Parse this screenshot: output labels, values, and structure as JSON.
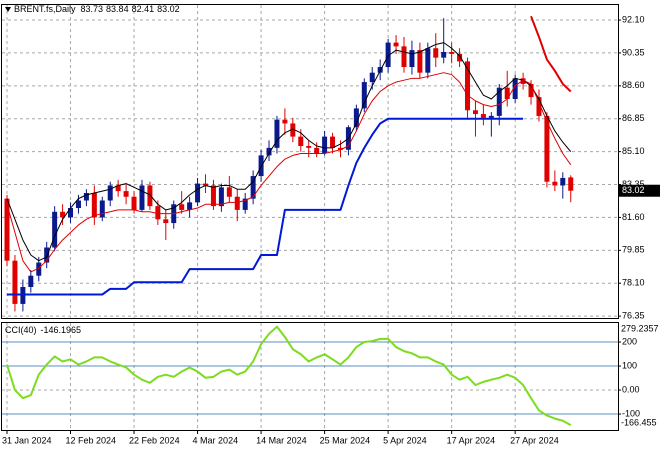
{
  "chart_data": [
    {
      "type": "candlestick",
      "title": "BRENT.fs,Daily",
      "categories": [
        "31 Jan 2024",
        null,
        null,
        null,
        null,
        null,
        null,
        null,
        "12 Feb 2024",
        null,
        null,
        null,
        null,
        null,
        null,
        null,
        "22 Feb 2024",
        null,
        null,
        null,
        null,
        null,
        null,
        null,
        "4 Mar 2024",
        null,
        null,
        null,
        null,
        null,
        null,
        null,
        "14 Mar 2024",
        null,
        null,
        null,
        null,
        null,
        null,
        null,
        "25 Mar 2024",
        null,
        null,
        null,
        null,
        null,
        null,
        null,
        "5 Apr 2024",
        null,
        null,
        null,
        null,
        null,
        null,
        null,
        "17 Apr 2024",
        null,
        null,
        null,
        null,
        null,
        null,
        null,
        "27 Apr 2024",
        null,
        null,
        null,
        null,
        null,
        null,
        null
      ],
      "open": [
        82.6,
        79.3,
        77.0,
        77.9,
        78.5,
        79.2,
        80.0,
        81.9,
        81.6,
        82.1,
        82.5,
        82.9,
        81.6,
        82.5,
        83.3,
        83.0,
        82.7,
        82.0,
        83.3,
        82.2,
        81.5,
        81.3,
        82.3,
        82.0,
        82.4,
        83.4,
        83.3,
        82.2,
        83.2,
        82.7,
        82.0,
        82.6,
        83.8,
        84.9,
        85.3,
        86.8,
        86.6,
        85.9,
        85.4,
        85.3,
        85.0,
        85.9,
        85.3,
        85.2,
        86.4,
        87.4,
        88.8,
        89.3,
        89.6,
        90.9,
        90.7,
        89.6,
        90.5,
        89.3,
        90.6,
        90.1,
        90.4,
        90.3,
        89.9,
        87.3,
        87.1,
        86.9,
        87.0,
        88.5,
        87.9,
        89.0,
        88.7,
        88.0,
        87.0,
        83.5,
        83.3,
        83.73
      ],
      "high": [
        82.8,
        79.6,
        78.3,
        78.8,
        79.5,
        80.3,
        82.2,
        82.3,
        82.4,
        82.8,
        83.1,
        83.3,
        82.7,
        83.5,
        83.6,
        83.4,
        83.0,
        83.6,
        83.5,
        82.5,
        82.0,
        82.5,
        83.0,
        82.7,
        83.7,
        83.9,
        83.6,
        83.4,
        83.8,
        83.1,
        82.9,
        84.1,
        85.2,
        85.7,
        87.0,
        87.4,
        86.9,
        86.3,
        85.7,
        85.6,
        86.2,
        86.1,
        85.7,
        86.5,
        87.6,
        89.0,
        89.6,
        90.0,
        91.1,
        91.3,
        91.2,
        91.0,
        90.9,
        90.9,
        91.4,
        92.2,
        90.9,
        90.6,
        90.1,
        87.8,
        87.6,
        87.2,
        88.7,
        89.4,
        89.2,
        89.3,
        88.9,
        88.4,
        87.2,
        84.1,
        84.0,
        83.84
      ],
      "low": [
        79.0,
        76.6,
        76.6,
        77.6,
        78.2,
        78.9,
        79.8,
        81.2,
        81.3,
        81.8,
        82.2,
        81.2,
        81.4,
        82.2,
        82.7,
        82.3,
        81.8,
        81.9,
        82.0,
        81.2,
        80.4,
        81.0,
        81.8,
        81.6,
        82.2,
        82.9,
        82.0,
        81.9,
        82.4,
        81.4,
        81.8,
        82.3,
        83.5,
        84.6,
        85.0,
        86.0,
        85.6,
        85.1,
        84.8,
        84.8,
        84.9,
        85.0,
        84.8,
        84.9,
        86.2,
        87.2,
        88.4,
        88.9,
        89.3,
        90.3,
        89.3,
        89.2,
        89.0,
        89.0,
        89.6,
        89.8,
        89.8,
        89.6,
        86.8,
        85.9,
        86.5,
        85.9,
        86.5,
        87.5,
        87.7,
        88.4,
        87.6,
        86.7,
        83.2,
        83.0,
        82.6,
        82.41
      ],
      "close": [
        79.3,
        77.0,
        77.9,
        78.5,
        79.2,
        80.0,
        81.9,
        81.6,
        82.1,
        82.5,
        82.9,
        81.6,
        82.5,
        83.3,
        83.0,
        82.7,
        82.0,
        83.3,
        82.2,
        81.5,
        81.3,
        82.3,
        82.0,
        82.4,
        83.4,
        83.3,
        82.2,
        83.2,
        82.7,
        82.0,
        82.6,
        83.8,
        84.9,
        85.3,
        86.8,
        86.6,
        85.9,
        85.4,
        85.3,
        85.0,
        85.9,
        85.3,
        85.2,
        86.4,
        87.4,
        88.8,
        89.3,
        89.6,
        90.9,
        90.7,
        89.6,
        90.5,
        89.3,
        90.6,
        90.1,
        90.4,
        90.3,
        89.9,
        87.3,
        87.1,
        86.9,
        87.0,
        88.5,
        87.9,
        89.0,
        88.7,
        88.0,
        87.0,
        83.5,
        83.3,
        83.7,
        83.02
      ],
      "up_color": "#0a1a8c",
      "down_color": "#e00000",
      "lines": [
        {
          "color": "#000000",
          "width": 1,
          "values": [
            82.6,
            81.5,
            80.4,
            79.6,
            79.3,
            79.5,
            80.6,
            81.5,
            82.1,
            82.6,
            82.8,
            82.9,
            83.0,
            83.1,
            83.3,
            83.4,
            83.2,
            83.0,
            82.8,
            82.3,
            82.0,
            82.1,
            82.4,
            82.8,
            83.1,
            83.3,
            83.2,
            83.3,
            83.3,
            83.1,
            83.1,
            83.5,
            84.3,
            85.0,
            85.7,
            86.1,
            86.3,
            86.1,
            85.7,
            85.4,
            85.3,
            85.3,
            85.5,
            85.8,
            86.6,
            87.7,
            88.6,
            89.4,
            90.2,
            90.5,
            90.4,
            90.3,
            90.4,
            90.6,
            90.8,
            90.9,
            90.6,
            90.2,
            89.5,
            88.8,
            88.1,
            87.9,
            88.3,
            88.6,
            89.0,
            88.9,
            88.6,
            87.9,
            87.0,
            86.2,
            85.6,
            85.1
          ]
        },
        {
          "color": "#e00000",
          "width": 1,
          "values": [
            82.3,
            80.8,
            79.3,
            78.7,
            78.9,
            79.3,
            79.9,
            80.4,
            80.8,
            81.2,
            81.5,
            81.7,
            81.8,
            81.9,
            82.0,
            82.0,
            82.0,
            81.9,
            81.9,
            81.8,
            81.8,
            81.8,
            81.9,
            82.0,
            82.1,
            82.3,
            82.3,
            82.3,
            82.4,
            82.4,
            82.5,
            82.7,
            83.3,
            83.8,
            84.3,
            84.7,
            84.9,
            85.0,
            85.0,
            85.0,
            85.0,
            85.1,
            85.2,
            85.4,
            86.2,
            87.1,
            87.8,
            88.3,
            88.6,
            88.8,
            88.9,
            89.0,
            89.0,
            89.1,
            89.2,
            89.3,
            89.2,
            88.8,
            88.1,
            87.8,
            87.6,
            87.5,
            87.6,
            87.9,
            88.6,
            88.9,
            88.7,
            87.7,
            86.7,
            85.8,
            85.0,
            84.4
          ]
        },
        {
          "color": "#0018d8",
          "width": 2,
          "values": [
            77.5,
            77.5,
            77.5,
            77.5,
            77.5,
            77.5,
            77.5,
            77.5,
            77.5,
            77.5,
            77.5,
            77.5,
            77.5,
            77.8,
            77.8,
            77.8,
            78.15,
            78.15,
            78.15,
            78.15,
            78.15,
            78.15,
            78.15,
            78.85,
            78.85,
            78.85,
            78.85,
            78.85,
            78.85,
            78.85,
            78.85,
            78.85,
            79.6,
            79.6,
            79.6,
            82.0,
            82.0,
            82.0,
            82.0,
            82.0,
            82.0,
            82.0,
            82.0,
            83.3,
            84.5,
            85.3,
            86.0,
            86.6,
            86.85,
            86.85,
            86.85,
            86.85,
            86.85,
            86.85,
            86.85,
            86.85,
            86.85,
            86.85,
            86.85,
            86.85,
            86.85,
            86.85,
            86.85,
            86.85,
            86.85,
            86.85,
            null,
            null,
            null,
            null,
            null,
            null
          ]
        },
        {
          "color": "#e00000",
          "width": 2,
          "values": [
            null,
            null,
            null,
            null,
            null,
            null,
            null,
            null,
            null,
            null,
            null,
            null,
            null,
            null,
            null,
            null,
            null,
            null,
            null,
            null,
            null,
            null,
            null,
            null,
            null,
            null,
            null,
            null,
            null,
            null,
            null,
            null,
            null,
            null,
            null,
            null,
            null,
            null,
            null,
            null,
            null,
            null,
            null,
            null,
            null,
            null,
            null,
            null,
            null,
            null,
            null,
            null,
            null,
            null,
            null,
            null,
            null,
            null,
            null,
            null,
            null,
            null,
            null,
            null,
            null,
            null,
            92.3,
            91.2,
            90.0,
            89.4,
            88.7,
            88.3
          ]
        }
      ],
      "ylim": [
        76.25,
        92.9
      ],
      "yticks": [
        {
          "value": 92.1,
          "label": "92.10"
        },
        90.35,
        {
          "value": 88.6,
          "label": "88.60"
        },
        86.85,
        {
          "value": 85.1,
          "label": "85.10"
        },
        83.35,
        {
          "value": 81.6,
          "label": "81.60"
        },
        79.85,
        {
          "value": 78.1,
          "label": "78.10"
        },
        76.35
      ],
      "grid": true
    },
    {
      "type": "line",
      "title": "CCI(40)",
      "series": [
        {
          "color": "#7ddc1f",
          "values": [
            106,
            0,
            -34,
            -21,
            64,
            106,
            140,
            119,
            128,
            106,
            119,
            136,
            136,
            119,
            106,
            94,
            64,
            43,
            30,
            55,
            64,
            55,
            77,
            94,
            77,
            51,
            55,
            77,
            85,
            64,
            77,
            119,
            191,
            234,
            264,
            221,
            170,
            149,
            119,
            136,
            149,
            128,
            106,
            136,
            179,
            200,
            204,
            213,
            213,
            179,
            162,
            153,
            136,
            136,
            119,
            106,
            64,
            43,
            55,
            21,
            34,
            43,
            51,
            64,
            51,
            21,
            -34,
            -85,
            -106,
            -119,
            -128,
            -146.1965
          ]
        }
      ],
      "ylim": [
        -166.455,
        279.2357
      ],
      "yticks": [
        200,
        100,
        {
          "value": 0,
          "label": "0.00"
        },
        -100
      ],
      "levels": [
        200,
        100,
        -100
      ],
      "level_color": "#5b8fc7",
      "grid": true
    }
  ]
}
